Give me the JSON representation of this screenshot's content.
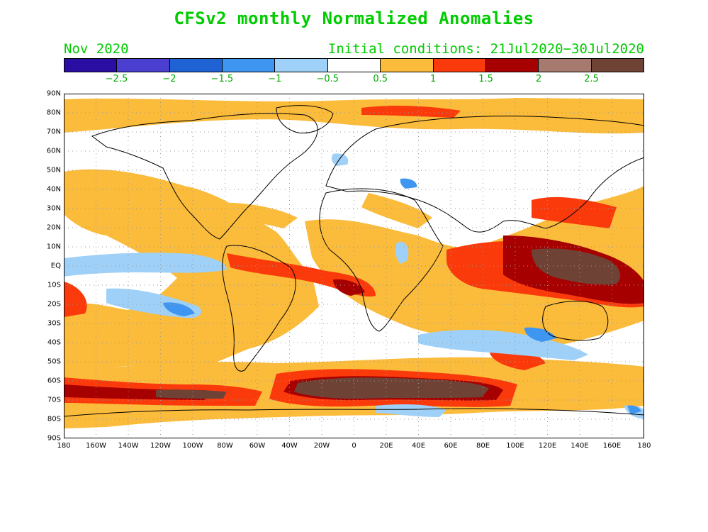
{
  "title": "CFSv2 monthly Normalized Anomalies",
  "valid_month": "Nov 2020",
  "initial_conditions": "Initial conditions: 21Jul2020−30Jul2020",
  "colorbar": {
    "colors": [
      "#2a0ea3",
      "#4a3fd1",
      "#1e62d4",
      "#3f96f0",
      "#9fd0f7",
      "#ffffff",
      "#fbbb3b",
      "#fb3a0b",
      "#a60000",
      "#a67a6f",
      "#6e4336"
    ],
    "labels": [
      "−2.5",
      "−2",
      "−1.5",
      "−1",
      "−0.5",
      "0.5",
      "1",
      "1.5",
      "2",
      "2.5"
    ]
  },
  "map": {
    "projection": "plate-carree",
    "latitude_labels": [
      "90N",
      "80N",
      "70N",
      "60N",
      "50N",
      "40N",
      "30N",
      "20N",
      "10N",
      "EQ",
      "10S",
      "20S",
      "30S",
      "40S",
      "50S",
      "60S",
      "70S",
      "80S",
      "90S"
    ],
    "longitude_labels": [
      "180",
      "160W",
      "140W",
      "120W",
      "100W",
      "80W",
      "60W",
      "40W",
      "20W",
      "0",
      "20E",
      "40E",
      "60E",
      "80E",
      "100E",
      "120E",
      "140E",
      "160E",
      "180"
    ],
    "grid": "dotted 10-degree",
    "colors": {
      "land_outline": "#000000",
      "frame": "#000000"
    }
  }
}
